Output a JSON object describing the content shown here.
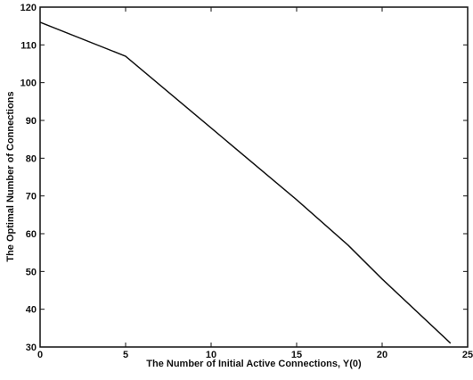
{
  "chart_data": {
    "type": "line",
    "title": "",
    "xlabel": "The Number of Initial Active Connections, Y(0)",
    "ylabel": "The Optimal Number of Connections",
    "xlim": [
      0,
      25
    ],
    "ylim": [
      30,
      120
    ],
    "xticks": [
      0,
      5,
      10,
      15,
      20,
      25
    ],
    "yticks": [
      30,
      40,
      50,
      60,
      70,
      80,
      90,
      100,
      110,
      120
    ],
    "xtick_labels": [
      "0",
      "5",
      "10",
      "15",
      "20",
      "25"
    ],
    "ytick_labels": [
      "30",
      "40",
      "50",
      "60",
      "70",
      "80",
      "90",
      "100",
      "110",
      "120"
    ],
    "grid": false,
    "series": [
      {
        "x": [
          0,
          5,
          10,
          15,
          18,
          20,
          24
        ],
        "y": [
          116,
          107,
          88,
          69,
          57,
          48,
          31
        ]
      }
    ],
    "line_color": "#111111"
  }
}
